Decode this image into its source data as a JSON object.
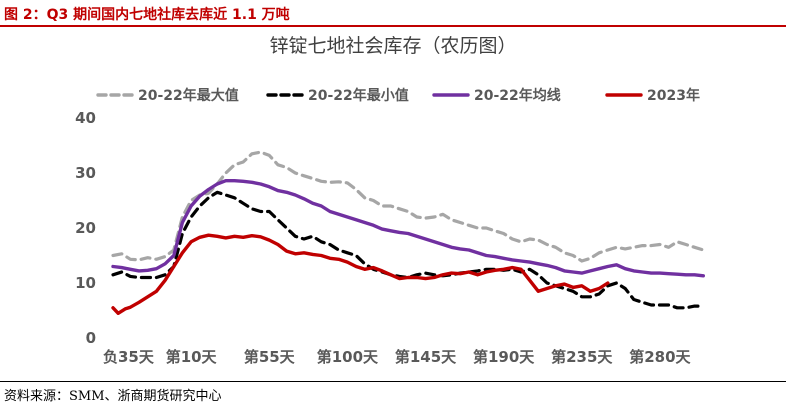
{
  "figure": {
    "caption": "图 2：Q3 期间国内七地社库去库近 1.1 万吨",
    "source": "资料来源：SMM、浙商期货研究中心"
  },
  "chart_data": {
    "type": "line",
    "title": "锌锭七地社会库存（农历图）",
    "xlabel": "",
    "ylabel": "",
    "ylim": [
      0,
      40
    ],
    "y_ticks": [
      0,
      10,
      20,
      30,
      40
    ],
    "x_range": [
      -35,
      325
    ],
    "x_tick_values": [
      -35,
      10,
      55,
      100,
      145,
      190,
      235,
      280
    ],
    "x_tick_labels": [
      "负35天",
      "第10天",
      "第55天",
      "第100天",
      "第145天",
      "第190天",
      "第235天",
      "第280天"
    ],
    "grid": false,
    "legend_position": "top",
    "series": [
      {
        "name": "20-22年最大值",
        "color": "#a6a6a6",
        "style": "dashed",
        "points": [
          [
            -35,
            15
          ],
          [
            -30,
            15.3
          ],
          [
            -25,
            14.3
          ],
          [
            -20,
            14.2
          ],
          [
            -15,
            14.6
          ],
          [
            -10,
            14.3
          ],
          [
            -5,
            14.8
          ],
          [
            0,
            16
          ],
          [
            5,
            22
          ],
          [
            10,
            25
          ],
          [
            15,
            26
          ],
          [
            20,
            26.3
          ],
          [
            25,
            28
          ],
          [
            30,
            30
          ],
          [
            35,
            31.5
          ],
          [
            40,
            32
          ],
          [
            45,
            33.5
          ],
          [
            50,
            33.8
          ],
          [
            55,
            33.2
          ],
          [
            60,
            31.5
          ],
          [
            65,
            31
          ],
          [
            70,
            30
          ],
          [
            75,
            29.5
          ],
          [
            80,
            29
          ],
          [
            85,
            28.5
          ],
          [
            90,
            28.3
          ],
          [
            95,
            28.4
          ],
          [
            100,
            28.2
          ],
          [
            105,
            27
          ],
          [
            110,
            25.5
          ],
          [
            115,
            25
          ],
          [
            120,
            24
          ],
          [
            125,
            24
          ],
          [
            130,
            23.5
          ],
          [
            135,
            23
          ],
          [
            140,
            22
          ],
          [
            145,
            21.8
          ],
          [
            150,
            22
          ],
          [
            155,
            22.5
          ],
          [
            160,
            21.5
          ],
          [
            165,
            21
          ],
          [
            170,
            20.5
          ],
          [
            175,
            20
          ],
          [
            180,
            20
          ],
          [
            185,
            19.5
          ],
          [
            190,
            19
          ],
          [
            195,
            18
          ],
          [
            200,
            17.5
          ],
          [
            205,
            18
          ],
          [
            210,
            17.8
          ],
          [
            215,
            17
          ],
          [
            220,
            16.5
          ],
          [
            225,
            15.5
          ],
          [
            230,
            15
          ],
          [
            235,
            14
          ],
          [
            240,
            14.5
          ],
          [
            245,
            15.5
          ],
          [
            250,
            16
          ],
          [
            255,
            16.5
          ],
          [
            260,
            16.2
          ],
          [
            265,
            16.5
          ],
          [
            270,
            16.8
          ],
          [
            275,
            16.8
          ],
          [
            280,
            17
          ],
          [
            285,
            16.5
          ],
          [
            290,
            17.5
          ],
          [
            295,
            17
          ],
          [
            300,
            16.5
          ],
          [
            305,
            16
          ]
        ]
      },
      {
        "name": "20-22年最小值",
        "color": "#000000",
        "style": "dashed",
        "points": [
          [
            -35,
            11.5
          ],
          [
            -30,
            12
          ],
          [
            -25,
            11.2
          ],
          [
            -20,
            11
          ],
          [
            -15,
            11
          ],
          [
            -10,
            11
          ],
          [
            -5,
            11.5
          ],
          [
            0,
            13
          ],
          [
            5,
            19
          ],
          [
            10,
            22
          ],
          [
            15,
            24
          ],
          [
            20,
            25.5
          ],
          [
            25,
            26.5
          ],
          [
            30,
            26
          ],
          [
            35,
            25.5
          ],
          [
            40,
            24.5
          ],
          [
            45,
            23.5
          ],
          [
            50,
            23
          ],
          [
            55,
            23
          ],
          [
            60,
            21.5
          ],
          [
            65,
            20
          ],
          [
            70,
            18.5
          ],
          [
            75,
            18
          ],
          [
            80,
            18.5
          ],
          [
            85,
            17.5
          ],
          [
            90,
            17
          ],
          [
            95,
            16
          ],
          [
            100,
            15.5
          ],
          [
            105,
            15
          ],
          [
            110,
            13.5
          ],
          [
            115,
            12.5
          ],
          [
            120,
            12
          ],
          [
            125,
            11.5
          ],
          [
            130,
            11.2
          ],
          [
            135,
            11
          ],
          [
            140,
            11.5
          ],
          [
            145,
            11.8
          ],
          [
            150,
            11.5
          ],
          [
            155,
            11.3
          ],
          [
            160,
            11.5
          ],
          [
            165,
            11.8
          ],
          [
            170,
            12
          ],
          [
            175,
            12.2
          ],
          [
            180,
            12.5
          ],
          [
            185,
            12.5
          ],
          [
            190,
            12.3
          ],
          [
            195,
            12.5
          ],
          [
            200,
            12
          ],
          [
            205,
            12.5
          ],
          [
            210,
            11.5
          ],
          [
            215,
            10
          ],
          [
            220,
            9.5
          ],
          [
            225,
            9
          ],
          [
            230,
            8.5
          ],
          [
            235,
            7.5
          ],
          [
            240,
            7.5
          ],
          [
            245,
            8
          ],
          [
            250,
            9.5
          ],
          [
            255,
            10
          ],
          [
            260,
            9
          ],
          [
            265,
            7
          ],
          [
            270,
            6.5
          ],
          [
            275,
            6
          ],
          [
            280,
            6
          ],
          [
            285,
            6
          ],
          [
            290,
            5.5
          ],
          [
            295,
            5.5
          ],
          [
            300,
            5.8
          ],
          [
            305,
            5.8
          ]
        ]
      },
      {
        "name": "20-22年均线",
        "color": "#7030a0",
        "style": "solid",
        "points": [
          [
            -35,
            13
          ],
          [
            -30,
            12.8
          ],
          [
            -25,
            12.5
          ],
          [
            -20,
            12.2
          ],
          [
            -15,
            12.3
          ],
          [
            -10,
            12.6
          ],
          [
            -5,
            13.5
          ],
          [
            0,
            15
          ],
          [
            5,
            21
          ],
          [
            10,
            24
          ],
          [
            15,
            25.8
          ],
          [
            20,
            27
          ],
          [
            25,
            28
          ],
          [
            30,
            28.6
          ],
          [
            35,
            28.6
          ],
          [
            40,
            28.5
          ],
          [
            45,
            28.3
          ],
          [
            50,
            28
          ],
          [
            55,
            27.5
          ],
          [
            60,
            26.8
          ],
          [
            65,
            26.5
          ],
          [
            70,
            26
          ],
          [
            75,
            25.3
          ],
          [
            80,
            24.5
          ],
          [
            85,
            24
          ],
          [
            90,
            23
          ],
          [
            95,
            22.5
          ],
          [
            100,
            22
          ],
          [
            105,
            21.5
          ],
          [
            110,
            21
          ],
          [
            115,
            20.5
          ],
          [
            120,
            19.8
          ],
          [
            125,
            19.5
          ],
          [
            130,
            19.2
          ],
          [
            135,
            19
          ],
          [
            140,
            18.5
          ],
          [
            145,
            18
          ],
          [
            150,
            17.5
          ],
          [
            155,
            17
          ],
          [
            160,
            16.5
          ],
          [
            165,
            16.2
          ],
          [
            170,
            16
          ],
          [
            175,
            15.5
          ],
          [
            180,
            15
          ],
          [
            185,
            14.8
          ],
          [
            190,
            14.5
          ],
          [
            195,
            14.2
          ],
          [
            200,
            14
          ],
          [
            205,
            13.8
          ],
          [
            210,
            13.5
          ],
          [
            215,
            13.2
          ],
          [
            220,
            12.8
          ],
          [
            225,
            12.2
          ],
          [
            230,
            12
          ],
          [
            235,
            11.8
          ],
          [
            240,
            12.2
          ],
          [
            245,
            12.6
          ],
          [
            250,
            13
          ],
          [
            255,
            13.3
          ],
          [
            260,
            12.6
          ],
          [
            265,
            12.2
          ],
          [
            270,
            12
          ],
          [
            275,
            11.8
          ],
          [
            280,
            11.8
          ],
          [
            285,
            11.7
          ],
          [
            290,
            11.6
          ],
          [
            295,
            11.5
          ],
          [
            300,
            11.5
          ],
          [
            305,
            11.3
          ]
        ]
      },
      {
        "name": "2023年",
        "color": "#c00000",
        "style": "solid",
        "points": [
          [
            -35,
            5.5
          ],
          [
            -32,
            4.5
          ],
          [
            -28,
            5.3
          ],
          [
            -25,
            5.6
          ],
          [
            -20,
            6.5
          ],
          [
            -15,
            7.5
          ],
          [
            -10,
            8.5
          ],
          [
            -5,
            10.5
          ],
          [
            0,
            13
          ],
          [
            5,
            15.5
          ],
          [
            10,
            17.5
          ],
          [
            15,
            18.3
          ],
          [
            20,
            18.7
          ],
          [
            25,
            18.5
          ],
          [
            30,
            18.2
          ],
          [
            35,
            18.5
          ],
          [
            40,
            18.3
          ],
          [
            45,
            18.6
          ],
          [
            50,
            18.4
          ],
          [
            55,
            17.8
          ],
          [
            60,
            17
          ],
          [
            65,
            15.8
          ],
          [
            70,
            15.3
          ],
          [
            75,
            15.5
          ],
          [
            80,
            15.2
          ],
          [
            85,
            15
          ],
          [
            90,
            14.5
          ],
          [
            95,
            14.3
          ],
          [
            100,
            13.8
          ],
          [
            105,
            13
          ],
          [
            110,
            12.5
          ],
          [
            115,
            12.8
          ],
          [
            120,
            12.2
          ],
          [
            125,
            11.5
          ],
          [
            130,
            10.8
          ],
          [
            135,
            11
          ],
          [
            140,
            11
          ],
          [
            145,
            10.8
          ],
          [
            150,
            11
          ],
          [
            155,
            11.5
          ],
          [
            160,
            11.8
          ],
          [
            165,
            11.7
          ],
          [
            170,
            12
          ],
          [
            175,
            11.5
          ],
          [
            180,
            12
          ],
          [
            185,
            12.3
          ],
          [
            190,
            12.5
          ],
          [
            195,
            12.8
          ],
          [
            200,
            12.5
          ],
          [
            205,
            10.5
          ],
          [
            210,
            8.5
          ],
          [
            215,
            9
          ],
          [
            220,
            9.5
          ],
          [
            225,
            9.8
          ],
          [
            230,
            9.2
          ],
          [
            235,
            9.5
          ],
          [
            240,
            8.5
          ],
          [
            245,
            9
          ],
          [
            250,
            10
          ]
        ]
      }
    ]
  }
}
